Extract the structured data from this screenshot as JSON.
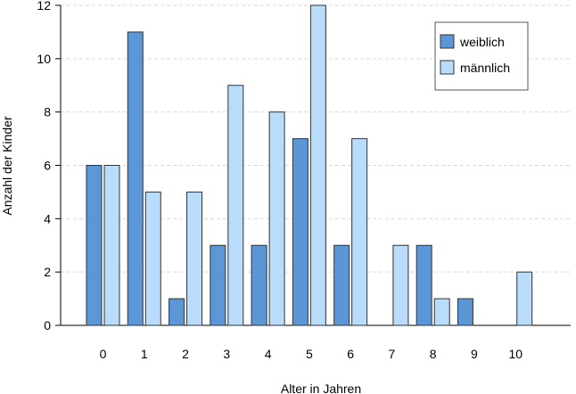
{
  "chart_data": {
    "type": "bar",
    "title": "",
    "xlabel": "Alter in Jahren",
    "ylabel": "Anzahl der Kinder",
    "categories": [
      "0",
      "1",
      "2",
      "3",
      "4",
      "5",
      "6",
      "7",
      "8",
      "9",
      "10"
    ],
    "series": [
      {
        "name": "weiblich",
        "color": "#5b97d6",
        "values": [
          6,
          11,
          1,
          3,
          3,
          7,
          3,
          0,
          3,
          1,
          0
        ]
      },
      {
        "name": "männlich",
        "color": "#b9dcfa",
        "values": [
          6,
          5,
          5,
          9,
          8,
          12,
          7,
          3,
          1,
          0,
          2
        ]
      }
    ],
    "ylim": [
      0,
      12
    ],
    "yticks": [
      "0",
      "2",
      "4",
      "6",
      "8",
      "10",
      "12"
    ],
    "grid": true,
    "legend_position": "top-right",
    "bar_edge_color": "#333333"
  }
}
